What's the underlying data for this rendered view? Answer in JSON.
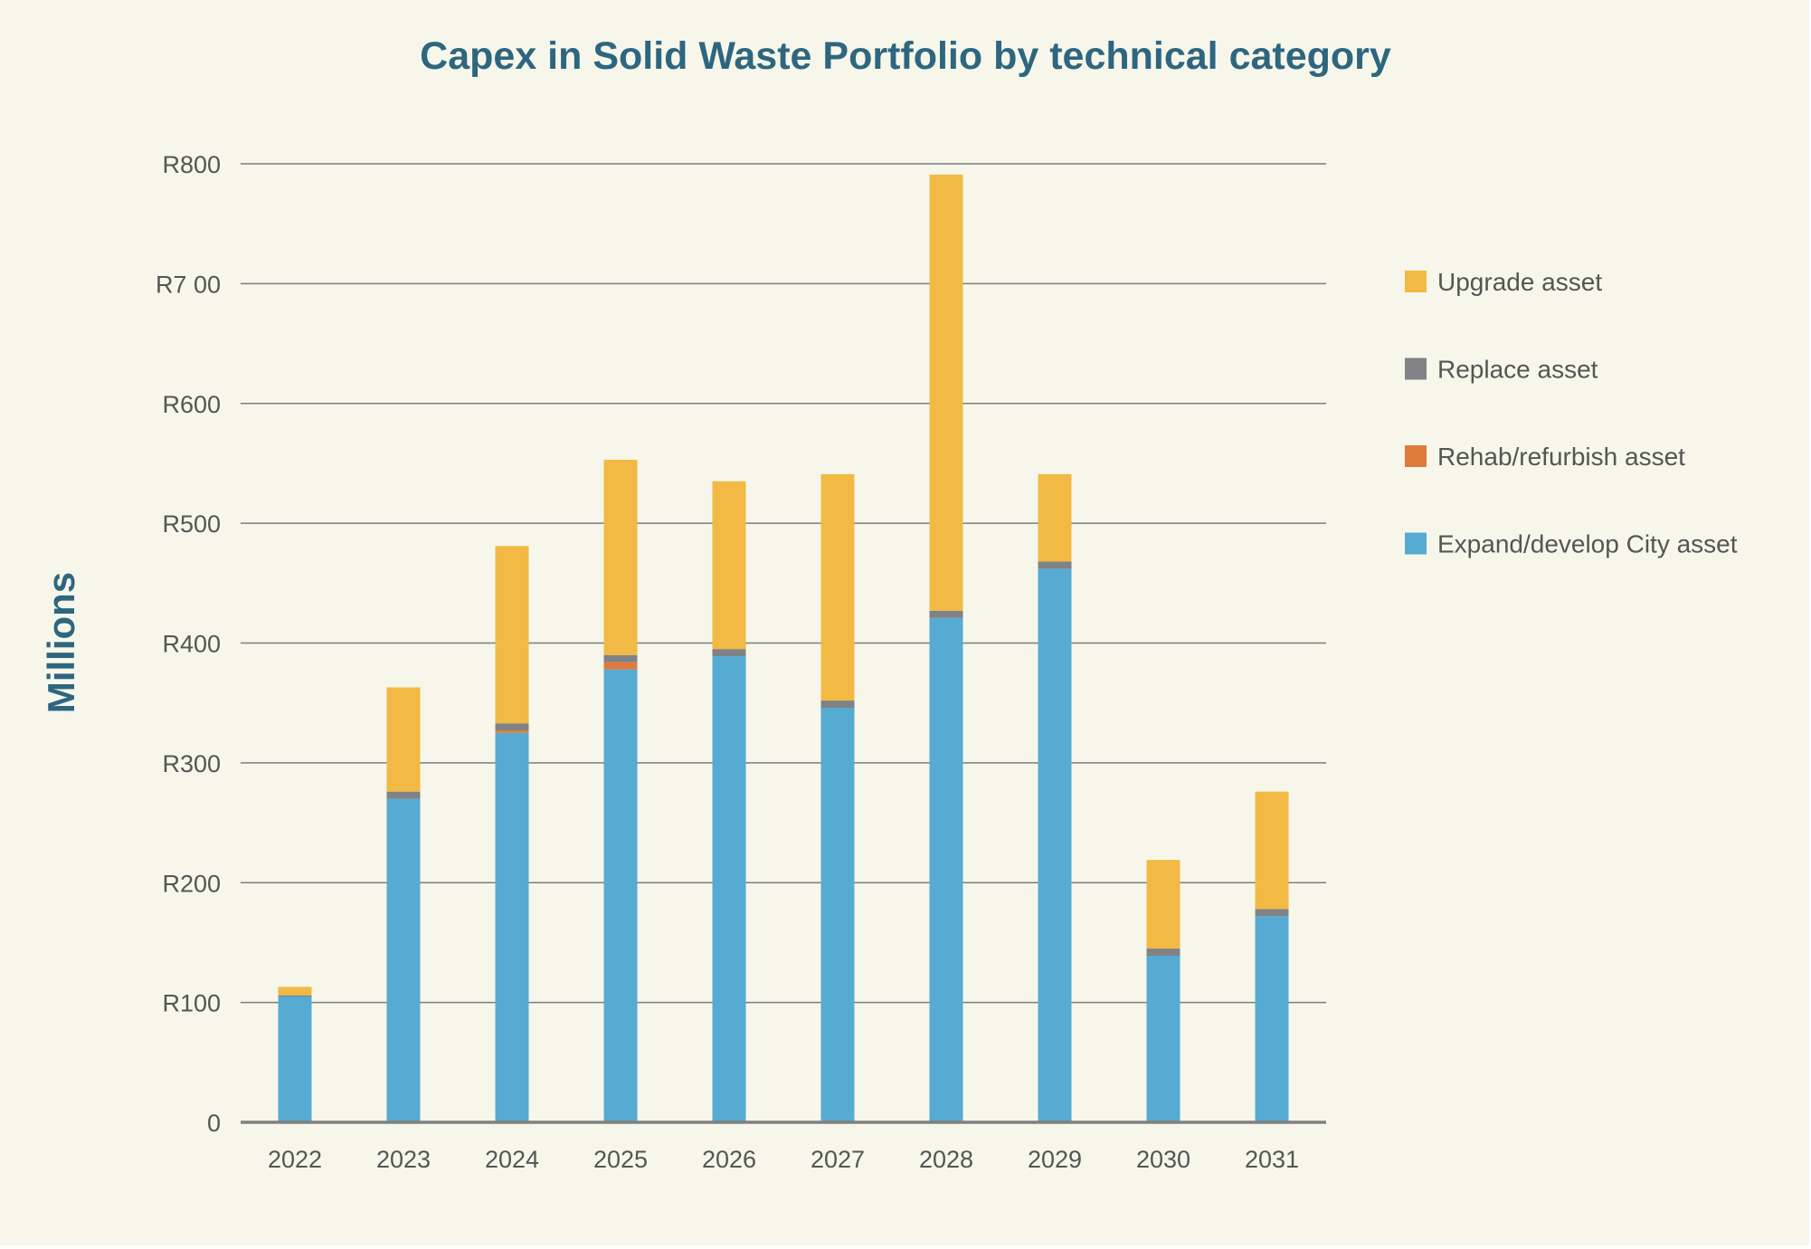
{
  "chart_data": {
    "type": "bar",
    "stacked": true,
    "title": "Capex in Solid Waste Portfolio by technical category",
    "ylabel": "Millions",
    "xlabel": "",
    "ylim": [
      0,
      800
    ],
    "y_ticks": [
      {
        "value": 0,
        "label": "0"
      },
      {
        "value": 100,
        "label": "R100"
      },
      {
        "value": 200,
        "label": "R200"
      },
      {
        "value": 300,
        "label": "R300"
      },
      {
        "value": 400,
        "label": "R400"
      },
      {
        "value": 500,
        "label": "R500"
      },
      {
        "value": 600,
        "label": "R600"
      },
      {
        "value": 700,
        "label": "R7 00"
      },
      {
        "value": 800,
        "label": "R800"
      }
    ],
    "grid": true,
    "legend_position": "right",
    "categories": [
      "2022",
      "2023",
      "2024",
      "2025",
      "2026",
      "2027",
      "2028",
      "2029",
      "2030",
      "2031"
    ],
    "series": [
      {
        "name": "Expand/develop City asset",
        "color": "#56abd3",
        "values": [
          105,
          270,
          325,
          378,
          389,
          346,
          421,
          462,
          139,
          172
        ]
      },
      {
        "name": "Rehab/refurbish asset",
        "color": "#e07a3c",
        "values": [
          0,
          0,
          2,
          6,
          0,
          0,
          0,
          0,
          0,
          0
        ]
      },
      {
        "name": "Replace asset",
        "color": "#808285",
        "values": [
          1,
          6,
          6,
          6,
          6,
          6,
          6,
          6,
          6,
          6
        ]
      },
      {
        "name": "Upgrade asset",
        "color": "#f2b944",
        "values": [
          7,
          87,
          148,
          163,
          140,
          189,
          364,
          73,
          74,
          98
        ]
      }
    ]
  }
}
